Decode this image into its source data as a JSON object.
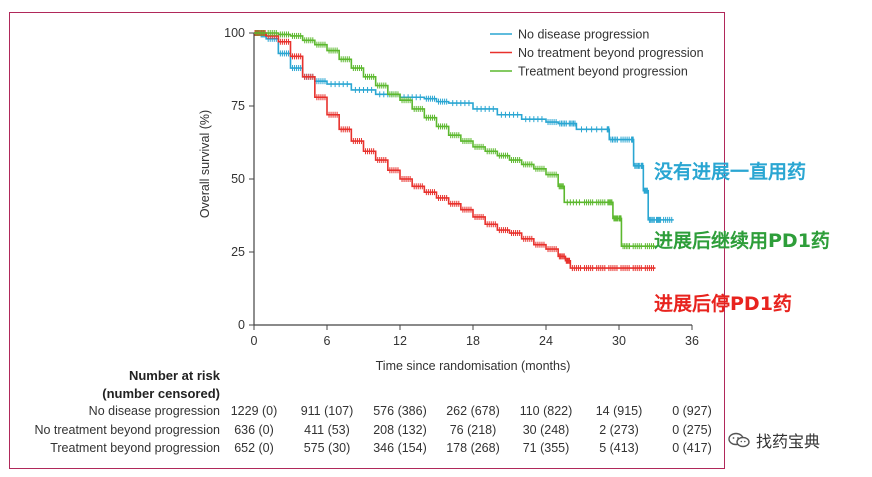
{
  "chart_data": {
    "type": "line",
    "title": "",
    "xlabel": "Time since randomisation (months)",
    "ylabel": "Overall survival (%)",
    "xlim": [
      0,
      36
    ],
    "ylim": [
      0,
      100
    ],
    "xticks": [
      0,
      6,
      12,
      18,
      24,
      30,
      36
    ],
    "yticks": [
      0,
      25,
      50,
      75,
      100
    ],
    "legend_position": "top-right",
    "series": [
      {
        "name": "No disease progression",
        "color": "#2aa6d2",
        "x": [
          0,
          0.5,
          1,
          2,
          3,
          4,
          5,
          6,
          8,
          10,
          12,
          14,
          15,
          16,
          18,
          20,
          22,
          24,
          25,
          25.8,
          26.5,
          29,
          29.2,
          30,
          31,
          31.2,
          31.8,
          32,
          32.4,
          33,
          33.5,
          34.5
        ],
        "y": [
          100,
          99.5,
          98,
          93,
          88,
          85,
          83.5,
          82.5,
          80.5,
          79,
          78,
          77.5,
          76.5,
          76,
          74,
          72,
          70.5,
          69.5,
          69,
          69,
          67,
          67,
          63.5,
          63.5,
          63.5,
          54.5,
          54.5,
          46,
          36,
          36,
          36,
          36
        ]
      },
      {
        "name": "No treatment beyond progression",
        "color": "#e8312c",
        "x": [
          0,
          0.5,
          1,
          2,
          3,
          4,
          5,
          6,
          7,
          8,
          9,
          10,
          11,
          12,
          13,
          14,
          15,
          16,
          17,
          18,
          19,
          20,
          21,
          22,
          23,
          24,
          25,
          25.6,
          26,
          27,
          28,
          29,
          30,
          31,
          32,
          33
        ],
        "y": [
          100,
          100,
          99,
          97,
          92,
          85,
          78,
          72,
          67,
          63,
          59.5,
          56.5,
          53,
          50,
          47.5,
          45.5,
          43.5,
          41.5,
          39.5,
          37,
          34.5,
          32.5,
          31.5,
          29.5,
          27.5,
          26,
          23.5,
          22,
          19.5,
          19.5,
          19.5,
          19.5,
          19.5,
          19.5,
          19.5,
          19.5
        ]
      },
      {
        "name": "Treatment beyond progression",
        "color": "#5cb82e",
        "x": [
          0,
          1,
          2,
          3,
          4,
          5,
          6,
          7,
          8,
          9,
          10,
          11,
          12,
          13,
          14,
          15,
          16,
          17,
          18,
          19,
          20,
          21,
          22,
          23,
          24,
          25,
          25.5,
          27,
          28,
          29,
          29.5,
          30,
          30.2,
          31,
          32,
          33
        ],
        "y": [
          100,
          100,
          99.5,
          99,
          97.5,
          96,
          94,
          91,
          88,
          85,
          82,
          79,
          77,
          74,
          71,
          68,
          65,
          63,
          61,
          59.5,
          58,
          56.5,
          55,
          53.5,
          51.5,
          47.5,
          42,
          42,
          42,
          42,
          36.5,
          36.5,
          27,
          27,
          27,
          27
        ]
      }
    ],
    "risk_table": {
      "title_line1": "Number at risk",
      "title_line2": "(number censored)",
      "times": [
        0,
        6,
        12,
        18,
        24,
        30,
        36
      ],
      "rows": [
        {
          "label": "No disease progression",
          "cells": [
            "1229 (0)",
            "911 (107)",
            "576 (386)",
            "262 (678)",
            "110 (822)",
            "14 (915)",
            "0 (927)"
          ]
        },
        {
          "label": "No treatment beyond progression",
          "cells": [
            "636 (0)",
            "411 (53)",
            "208 (132)",
            "76 (218)",
            "30 (248)",
            "2 (273)",
            "0 (275)"
          ]
        },
        {
          "label": "Treatment beyond progression",
          "cells": [
            "652 (0)",
            "575 (30)",
            "346 (154)",
            "178 (268)",
            "71 (355)",
            "5 (413)",
            "0 (417)"
          ]
        }
      ]
    },
    "annotations": [
      {
        "text": "没有进展一直用药",
        "color": "#2aa6d2"
      },
      {
        "text": "进展后继续用PD1药",
        "color": "#2e9e3a"
      },
      {
        "text": "进展后停PD1药",
        "color": "#e8231e"
      }
    ]
  },
  "watermark": {
    "text": "找药宝典",
    "icon": "wechat-icon"
  }
}
